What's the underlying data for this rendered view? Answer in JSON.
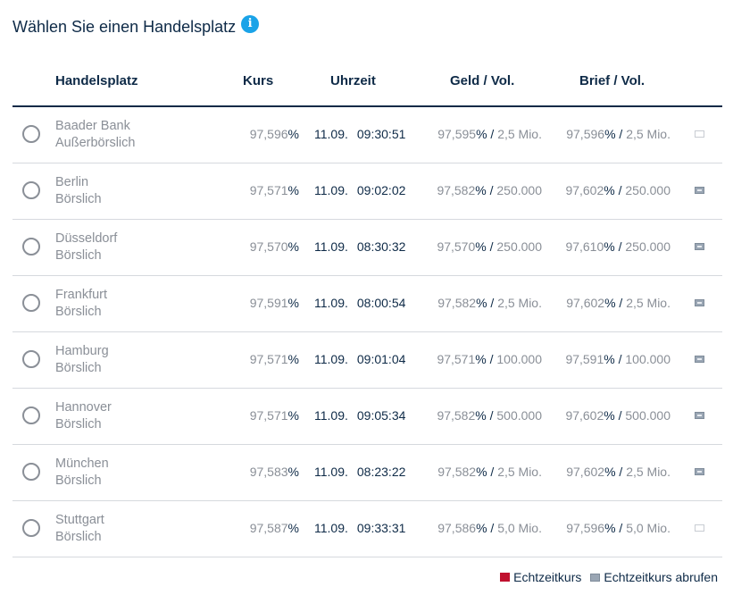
{
  "title": "Wählen Sie einen Handelsplatz",
  "info_icon": "i",
  "headers": {
    "venue": "Handelsplatz",
    "kurs": "Kurs",
    "time": "Uhrzeit",
    "geld": "Geld / Vol.",
    "brief": "Brief / Vol."
  },
  "rows": [
    {
      "name": "Baader Bank",
      "type": "Außerbörslich",
      "kurs": "97,596",
      "date": "11.09.",
      "clock": "09:30:51",
      "geld": "97,595",
      "geld_vol": "2,5 Mio.",
      "brief": "97,596",
      "brief_vol": "2,5 Mio.",
      "icon": "outline"
    },
    {
      "name": "Berlin",
      "type": "Börslich",
      "kurs": "97,571",
      "date": "11.09.",
      "clock": "09:02:02",
      "geld": "97,582",
      "geld_vol": "250.000",
      "brief": "97,602",
      "brief_vol": "250.000",
      "icon": "filled"
    },
    {
      "name": "Düsseldorf",
      "type": "Börslich",
      "kurs": "97,570",
      "date": "11.09.",
      "clock": "08:30:32",
      "geld": "97,570",
      "geld_vol": "250.000",
      "brief": "97,610",
      "brief_vol": "250.000",
      "icon": "filled"
    },
    {
      "name": "Frankfurt",
      "type": "Börslich",
      "kurs": "97,591",
      "date": "11.09.",
      "clock": "08:00:54",
      "geld": "97,582",
      "geld_vol": "2,5 Mio.",
      "brief": "97,602",
      "brief_vol": "2,5 Mio.",
      "icon": "filled"
    },
    {
      "name": "Hamburg",
      "type": "Börslich",
      "kurs": "97,571",
      "date": "11.09.",
      "clock": "09:01:04",
      "geld": "97,571",
      "geld_vol": "100.000",
      "brief": "97,591",
      "brief_vol": "100.000",
      "icon": "filled"
    },
    {
      "name": "Hannover",
      "type": "Börslich",
      "kurs": "97,571",
      "date": "11.09.",
      "clock": "09:05:34",
      "geld": "97,582",
      "geld_vol": "500.000",
      "brief": "97,602",
      "brief_vol": "500.000",
      "icon": "filled"
    },
    {
      "name": "München",
      "type": "Börslich",
      "kurs": "97,583",
      "date": "11.09.",
      "clock": "08:23:22",
      "geld": "97,582",
      "geld_vol": "2,5 Mio.",
      "brief": "97,602",
      "brief_vol": "2,5 Mio.",
      "icon": "filled"
    },
    {
      "name": "Stuttgart",
      "type": "Börslich",
      "kurs": "97,587",
      "date": "11.09.",
      "clock": "09:33:31",
      "geld": "97,586",
      "geld_vol": "5,0 Mio.",
      "brief": "97,596",
      "brief_vol": "5,0 Mio.",
      "icon": "outline"
    }
  ],
  "symbols": {
    "percent": "%",
    "slash": "/"
  },
  "legend": {
    "realtime_label": "Echtzeitkurs",
    "realtime_color": "#c0102e",
    "fetch_label": "Echtzeitkurs abrufen"
  }
}
